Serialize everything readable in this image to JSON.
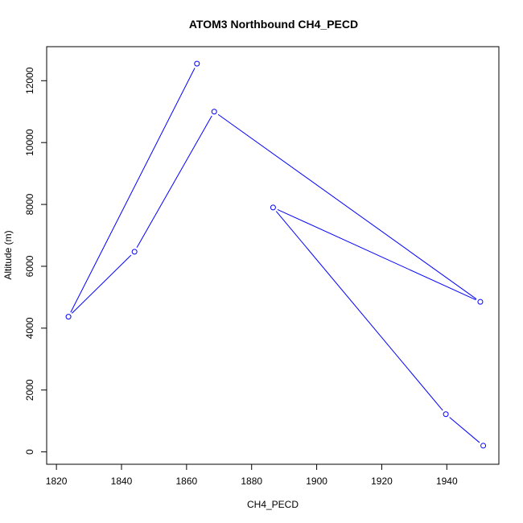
{
  "chart_data": {
    "type": "line",
    "title": "ATOM3 Northbound CH4_PECD",
    "xlabel": "CH4_PECD",
    "ylabel": "Altitude (m)",
    "xlim": [
      1817,
      1956
    ],
    "ylim": [
      -400,
      13100
    ],
    "x_ticks": [
      1820,
      1840,
      1860,
      1880,
      1900,
      1920,
      1940
    ],
    "y_ticks": [
      0,
      2000,
      4000,
      6000,
      8000,
      10000,
      12000
    ],
    "grid": false,
    "series_color": "#0000ff",
    "points": [
      {
        "x": 1863.2,
        "y": 12550
      },
      {
        "x": 1823.7,
        "y": 4370
      },
      {
        "x": 1844.0,
        "y": 6470
      },
      {
        "x": 1868.5,
        "y": 11000
      },
      {
        "x": 1950.3,
        "y": 4850
      },
      {
        "x": 1886.6,
        "y": 7900
      },
      {
        "x": 1939.7,
        "y": 1220
      },
      {
        "x": 1951.2,
        "y": 200
      }
    ]
  }
}
